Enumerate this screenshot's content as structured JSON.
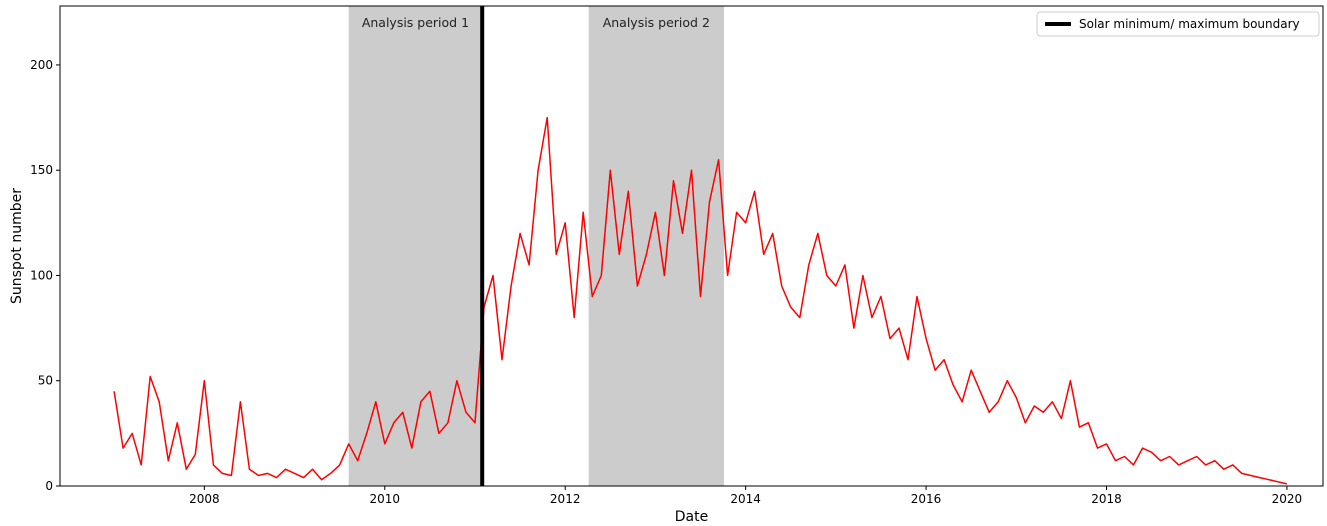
{
  "chart_data": {
    "type": "line",
    "xlabel": "Date",
    "ylabel": "Sunspot number",
    "xlim": [
      2006.4,
      2020.4
    ],
    "ylim": [
      0,
      228
    ],
    "x_ticks": [
      2008,
      2010,
      2012,
      2014,
      2016,
      2018,
      2020
    ],
    "x_tick_labels": [
      "2008",
      "2010",
      "2012",
      "2014",
      "2016",
      "2018",
      "2020"
    ],
    "y_ticks": [
      0,
      50,
      100,
      150,
      200
    ],
    "y_tick_labels": [
      "0",
      "50",
      "100",
      "150",
      "200"
    ],
    "grid": false,
    "legend": {
      "position": "top-right",
      "entries": [
        "Solar minimum/ maximum boundary"
      ]
    },
    "line_color": "#ff0000",
    "boundary_color": "#000000",
    "band_color": "#cccccc",
    "shaded_periods": [
      {
        "label": "Analysis period 1",
        "start": 2009.6,
        "end": 2011.08
      },
      {
        "label": "Analysis period 2",
        "start": 2012.26,
        "end": 2013.76
      }
    ],
    "boundary": {
      "x": 2011.08,
      "label": "Solar minimum/ maximum boundary"
    },
    "series": [
      {
        "name": "",
        "x": [
          2007.0,
          2007.1,
          2007.2,
          2007.3,
          2007.4,
          2007.5,
          2007.6,
          2007.7,
          2007.8,
          2007.9,
          2008.0,
          2008.1,
          2008.2,
          2008.3,
          2008.4,
          2008.5,
          2008.6,
          2008.7,
          2008.8,
          2008.9,
          2009.0,
          2009.1,
          2009.2,
          2009.3,
          2009.4,
          2009.5,
          2009.6,
          2009.7,
          2009.8,
          2009.9,
          2010.0,
          2010.1,
          2010.2,
          2010.3,
          2010.4,
          2010.5,
          2010.6,
          2010.7,
          2010.8,
          2010.9,
          2011.0,
          2011.1,
          2011.2,
          2011.3,
          2011.4,
          2011.5,
          2011.6,
          2011.7,
          2011.8,
          2011.9,
          2012.0,
          2012.1,
          2012.2,
          2012.3,
          2012.4,
          2012.5,
          2012.6,
          2012.7,
          2012.8,
          2012.9,
          2013.0,
          2013.1,
          2013.2,
          2013.3,
          2013.4,
          2013.5,
          2013.6,
          2013.7,
          2013.8,
          2013.9,
          2014.0,
          2014.1,
          2014.2,
          2014.3,
          2014.4,
          2014.5,
          2014.6,
          2014.7,
          2014.8,
          2014.9,
          2015.0,
          2015.1,
          2015.2,
          2015.3,
          2015.4,
          2015.5,
          2015.6,
          2015.7,
          2015.8,
          2015.9,
          2016.0,
          2016.1,
          2016.2,
          2016.3,
          2016.4,
          2016.5,
          2016.6,
          2016.7,
          2016.8,
          2016.9,
          2017.0,
          2017.1,
          2017.2,
          2017.3,
          2017.4,
          2017.5,
          2017.6,
          2017.7,
          2017.8,
          2017.9,
          2018.0,
          2018.1,
          2018.2,
          2018.3,
          2018.4,
          2018.5,
          2018.6,
          2018.7,
          2018.8,
          2018.9,
          2019.0,
          2019.1,
          2019.2,
          2019.3,
          2019.4,
          2019.5,
          2019.6,
          2019.7,
          2019.8,
          2019.9,
          2020.0
        ],
        "y": [
          45,
          18,
          25,
          10,
          52,
          40,
          12,
          30,
          8,
          15,
          50,
          10,
          6,
          5,
          40,
          8,
          5,
          6,
          4,
          8,
          6,
          4,
          8,
          3,
          6,
          10,
          20,
          12,
          25,
          40,
          20,
          30,
          35,
          18,
          40,
          45,
          25,
          30,
          50,
          35,
          30,
          85,
          100,
          60,
          95,
          120,
          105,
          150,
          175,
          110,
          125,
          80,
          130,
          90,
          100,
          150,
          110,
          140,
          95,
          110,
          130,
          100,
          145,
          120,
          150,
          90,
          135,
          155,
          100,
          130,
          125,
          140,
          110,
          120,
          95,
          85,
          80,
          105,
          120,
          100,
          95,
          105,
          75,
          100,
          80,
          90,
          70,
          75,
          60,
          90,
          70,
          55,
          60,
          48,
          40,
          55,
          45,
          35,
          40,
          50,
          42,
          30,
          38,
          35,
          40,
          32,
          50,
          28,
          30,
          18,
          20,
          12,
          14,
          10,
          18,
          16,
          12,
          14,
          10,
          12,
          14,
          10,
          12,
          8,
          10,
          6,
          5,
          4,
          3,
          2,
          1
        ]
      }
    ]
  }
}
